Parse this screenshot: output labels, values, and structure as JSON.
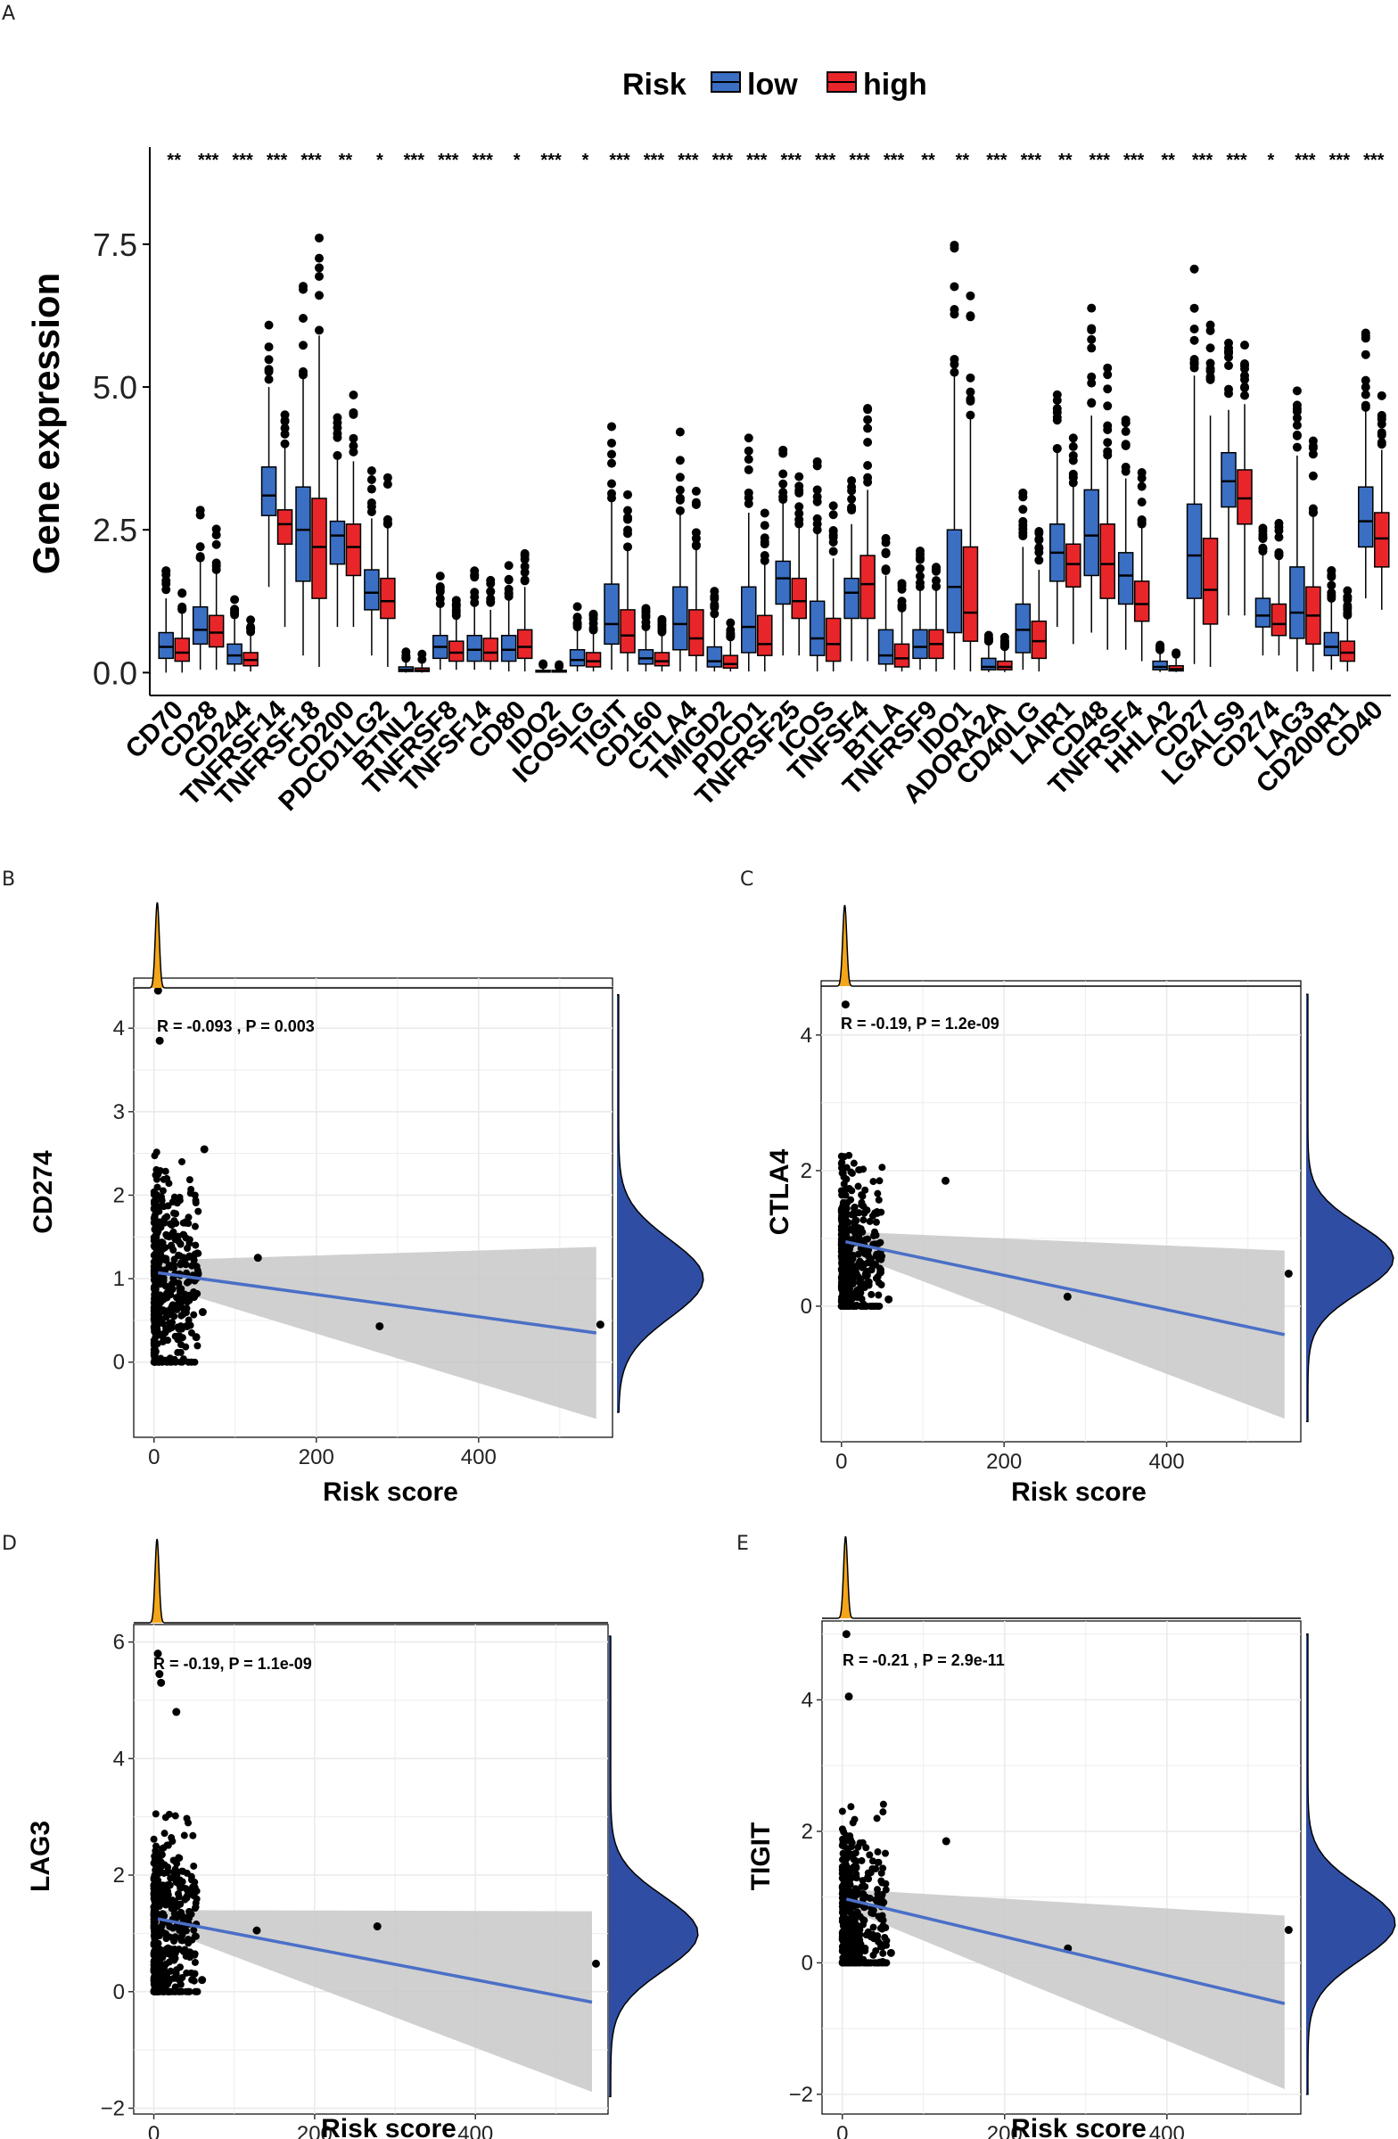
{
  "panels": {
    "A": "A",
    "B": "B",
    "C": "C",
    "D": "D",
    "E": "E"
  },
  "colors": {
    "low": "#3a6fc4",
    "high": "#e8262a",
    "density_top": "#f4a61a",
    "density_side": "#2f4ea3",
    "fit_line": "#4a6fc7",
    "band": "#c8c8c8",
    "grid": "#ebebeb"
  },
  "chart_data": [
    {
      "type": "box",
      "panel": "A",
      "ylabel": "Gene expression",
      "xlabel": "",
      "ylim": [
        -0.4,
        9.2
      ],
      "yticks": [
        0.0,
        2.5,
        5.0,
        7.5
      ],
      "ytick_labels": [
        "0.0",
        "2.5",
        "5.0",
        "7.5"
      ],
      "legend": {
        "title": "Risk",
        "entries": [
          "low",
          "high"
        ],
        "position": "top"
      },
      "categories": [
        "CD70",
        "CD28",
        "CD244",
        "TNFRSF14",
        "TNFRSF18",
        "CD200",
        "PDCD1LG2",
        "BTNL2",
        "TNFRSF8",
        "TNFSF14",
        "CD80",
        "IDO2",
        "ICOSLG",
        "TIGIT",
        "CD160",
        "CTLA4",
        "TMIGD2",
        "PDCD1",
        "TNFRSF25",
        "ICOS",
        "TNFSF4",
        "BTLA",
        "TNFRSF9",
        "IDO1",
        "ADORA2A",
        "CD40LG",
        "LAIR1",
        "CD48",
        "TNFRSF4",
        "HHLA2",
        "CD27",
        "LGALS9",
        "CD274",
        "LAG3",
        "CD200R1",
        "CD40"
      ],
      "significance": [
        "**",
        "***",
        "***",
        "***",
        "***",
        "**",
        "*",
        "***",
        "***",
        "***",
        "*",
        "***",
        "*",
        "***",
        "***",
        "***",
        "***",
        "***",
        "***",
        "***",
        "***",
        "***",
        "**",
        "**",
        "***",
        "***",
        "**",
        "***",
        "***",
        "**",
        "***",
        "***",
        "*",
        "***",
        "***",
        "***"
      ],
      "series": [
        {
          "name": "low",
          "stats": [
            [
              0,
              0.25,
              0.45,
              0.7,
              1.3
            ],
            [
              0.05,
              0.5,
              0.75,
              1.15,
              2.0
            ],
            [
              0.02,
              0.15,
              0.3,
              0.5,
              1.0
            ],
            [
              1.5,
              2.75,
              3.1,
              3.6,
              5.0
            ],
            [
              0.3,
              1.6,
              2.5,
              3.25,
              5.2
            ],
            [
              0.8,
              1.9,
              2.4,
              2.65,
              3.8
            ],
            [
              0.3,
              1.1,
              1.4,
              1.8,
              2.7
            ],
            [
              0,
              0.02,
              0.05,
              0.1,
              0.25
            ],
            [
              0.05,
              0.25,
              0.45,
              0.65,
              1.2
            ],
            [
              0.05,
              0.2,
              0.4,
              0.65,
              1.2
            ],
            [
              0.02,
              0.2,
              0.4,
              0.65,
              1.3
            ],
            [
              0,
              0.01,
              0.02,
              0.04,
              0.1
            ],
            [
              0.02,
              0.12,
              0.22,
              0.4,
              0.8
            ],
            [
              0.05,
              0.5,
              0.85,
              1.55,
              3.0
            ],
            [
              0.02,
              0.15,
              0.25,
              0.4,
              0.8
            ],
            [
              0.02,
              0.4,
              0.85,
              1.5,
              2.8
            ],
            [
              0.02,
              0.1,
              0.2,
              0.45,
              1.0
            ],
            [
              0.02,
              0.35,
              0.8,
              1.5,
              2.8
            ],
            [
              0.3,
              1.2,
              1.65,
              1.95,
              3.0
            ],
            [
              0.02,
              0.3,
              0.6,
              1.25,
              2.5
            ],
            [
              0.2,
              0.95,
              1.4,
              1.65,
              2.6
            ],
            [
              0.02,
              0.15,
              0.3,
              0.75,
              1.7
            ],
            [
              0.05,
              0.25,
              0.45,
              0.75,
              1.5
            ],
            [
              0.05,
              0.7,
              1.5,
              2.5,
              5.2
            ],
            [
              0.01,
              0.05,
              0.1,
              0.25,
              0.55
            ],
            [
              0.05,
              0.35,
              0.75,
              1.2,
              2.2
            ],
            [
              0.8,
              1.6,
              2.1,
              2.6,
              3.9
            ],
            [
              0.7,
              1.7,
              2.4,
              3.2,
              4.5
            ],
            [
              0.4,
              1.2,
              1.7,
              2.1,
              3.4
            ],
            [
              0.01,
              0.05,
              0.1,
              0.2,
              0.4
            ],
            [
              0.15,
              1.3,
              2.05,
              2.95,
              5.2
            ],
            [
              1.0,
              2.9,
              3.35,
              3.85,
              4.6
            ],
            [
              0.3,
              0.8,
              1.0,
              1.3,
              2.1
            ],
            [
              0.02,
              0.6,
              1.05,
              1.85,
              3.8
            ],
            [
              0.05,
              0.3,
              0.45,
              0.7,
              1.3
            ],
            [
              1.3,
              2.2,
              2.65,
              3.25,
              4.6
            ]
          ]
        },
        {
          "name": "high",
          "stats": [
            [
              0,
              0.2,
              0.35,
              0.6,
              1.1
            ],
            [
              0.05,
              0.45,
              0.7,
              1.0,
              1.8
            ],
            [
              0.02,
              0.12,
              0.22,
              0.35,
              0.7
            ],
            [
              0.8,
              2.25,
              2.6,
              2.85,
              4.0
            ],
            [
              0.1,
              1.3,
              2.2,
              3.05,
              5.9
            ],
            [
              0.8,
              1.7,
              2.2,
              2.6,
              3.7
            ],
            [
              0.1,
              0.95,
              1.25,
              1.65,
              2.6
            ],
            [
              0,
              0.02,
              0.04,
              0.08,
              0.2
            ],
            [
              0.05,
              0.2,
              0.35,
              0.55,
              1.0
            ],
            [
              0.05,
              0.2,
              0.35,
              0.6,
              1.1
            ],
            [
              0.02,
              0.25,
              0.45,
              0.75,
              1.5
            ],
            [
              0,
              0.01,
              0.02,
              0.04,
              0.1
            ],
            [
              0.02,
              0.1,
              0.2,
              0.35,
              0.7
            ],
            [
              0.02,
              0.35,
              0.65,
              1.1,
              2.2
            ],
            [
              0.02,
              0.12,
              0.2,
              0.35,
              0.7
            ],
            [
              0.02,
              0.3,
              0.6,
              1.1,
              2.2
            ],
            [
              0.02,
              0.08,
              0.15,
              0.3,
              0.6
            ],
            [
              0.02,
              0.3,
              0.5,
              1.0,
              1.9
            ],
            [
              0.3,
              0.95,
              1.25,
              1.65,
              2.6
            ],
            [
              0.02,
              0.2,
              0.5,
              0.95,
              2.0
            ],
            [
              0.2,
              0.95,
              1.55,
              2.05,
              3.2
            ],
            [
              0.02,
              0.1,
              0.25,
              0.5,
              1.1
            ],
            [
              0.02,
              0.25,
              0.5,
              0.75,
              1.5
            ],
            [
              0.02,
              0.55,
              1.05,
              2.2,
              4.5
            ],
            [
              0.01,
              0.05,
              0.1,
              0.2,
              0.45
            ],
            [
              0.02,
              0.25,
              0.55,
              0.9,
              1.8
            ],
            [
              0.5,
              1.5,
              1.9,
              2.25,
              3.3
            ],
            [
              0.4,
              1.3,
              1.9,
              2.6,
              3.8
            ],
            [
              0.2,
              0.9,
              1.2,
              1.6,
              2.6
            ],
            [
              0.01,
              0.03,
              0.06,
              0.12,
              0.25
            ],
            [
              0.1,
              0.85,
              1.45,
              2.35,
              4.5
            ],
            [
              1.0,
              2.6,
              3.05,
              3.55,
              4.7
            ],
            [
              0.3,
              0.65,
              0.85,
              1.2,
              2.0
            ],
            [
              0.02,
              0.5,
              1.0,
              1.5,
              2.8
            ],
            [
              0.02,
              0.2,
              0.35,
              0.55,
              1.0
            ],
            [
              1.1,
              1.85,
              2.35,
              2.8,
              3.9
            ]
          ]
        }
      ]
    },
    {
      "type": "scatter",
      "panel": "B",
      "title": "R = -0.093 , P = 0.003",
      "xlabel": "Risk score",
      "ylabel": "CD274",
      "xlim": [
        -25,
        565
      ],
      "ylim": [
        -0.9,
        4.6
      ],
      "xticks": [
        0,
        200,
        400
      ],
      "xtick_labels": [
        "0",
        "200",
        "400"
      ],
      "yticks": [
        0,
        1,
        2,
        3,
        4
      ],
      "ytick_labels": [
        "0",
        "1",
        "2",
        "3",
        "4"
      ],
      "fit": {
        "x": [
          5,
          545
        ],
        "y": [
          1.07,
          0.35
        ]
      },
      "band": {
        "x": [
          5,
          545
        ],
        "upper": [
          1.22,
          1.38
        ],
        "lower": [
          0.92,
          -0.68
        ]
      },
      "cluster": {
        "x_max": 55,
        "y_min": 0,
        "y_max": 3.3,
        "y_center": 1.0
      },
      "points": [
        [
          5,
          4.45
        ],
        [
          7,
          3.85
        ],
        [
          128,
          1.25
        ],
        [
          278,
          0.43
        ],
        [
          550,
          0.45
        ],
        [
          62,
          2.55
        ],
        [
          60,
          0.6
        ],
        [
          52,
          0.3
        ]
      ]
    },
    {
      "type": "scatter",
      "panel": "C",
      "title": "R = -0.19, P = 1.2e-09",
      "xlabel": "Risk score",
      "ylabel": "CTLA4",
      "xlim": [
        -25,
        565
      ],
      "ylim": [
        -2.0,
        4.8
      ],
      "xticks": [
        0,
        200,
        400
      ],
      "xtick_labels": [
        "0",
        "200",
        "400"
      ],
      "yticks": [
        0,
        2,
        4
      ],
      "ytick_labels": [
        "0",
        "2",
        "4"
      ],
      "fit": {
        "x": [
          5,
          545
        ],
        "y": [
          0.95,
          -0.42
        ]
      },
      "band": {
        "x": [
          5,
          545
        ],
        "upper": [
          1.1,
          0.82
        ],
        "lower": [
          0.8,
          -1.66
        ]
      },
      "cluster": {
        "x_max": 50,
        "y_min": 0,
        "y_max": 3.5,
        "y_center": 0.7
      },
      "points": [
        [
          5,
          4.45
        ],
        [
          128,
          1.85
        ],
        [
          278,
          0.14
        ],
        [
          550,
          0.48
        ],
        [
          58,
          0.1
        ],
        [
          48,
          0.5
        ]
      ]
    },
    {
      "type": "scatter",
      "panel": "D",
      "title": "R = -0.19, P = 1.1e-09",
      "xlabel": "Risk score",
      "ylabel": "LAG3",
      "xlim": [
        -25,
        565
      ],
      "ylim": [
        -2.1,
        6.3
      ],
      "xticks": [
        0,
        200,
        400
      ],
      "xtick_labels": [
        "0",
        "200",
        "400"
      ],
      "yticks": [
        -2,
        0,
        2,
        4,
        6
      ],
      "ytick_labels": [
        "−2",
        "0",
        "2",
        "4",
        "6"
      ],
      "fit": {
        "x": [
          5,
          545
        ],
        "y": [
          1.25,
          -0.18
        ]
      },
      "band": {
        "x": [
          5,
          545
        ],
        "upper": [
          1.4,
          1.38
        ],
        "lower": [
          1.1,
          -1.72
        ]
      },
      "cluster": {
        "x_max": 55,
        "y_min": 0,
        "y_max": 4.5,
        "y_center": 1.0
      },
      "points": [
        [
          5,
          5.8
        ],
        [
          7,
          5.45
        ],
        [
          9,
          5.3
        ],
        [
          128,
          1.05
        ],
        [
          278,
          1.12
        ],
        [
          550,
          0.48
        ],
        [
          60,
          0.2
        ],
        [
          28,
          4.8
        ]
      ]
    },
    {
      "type": "scatter",
      "panel": "E",
      "title": "R = -0.21 , P = 2.9e-11",
      "xlabel": "Risk score",
      "ylabel": "TIGIT",
      "xlim": [
        -25,
        565
      ],
      "ylim": [
        -2.3,
        5.2
      ],
      "xticks": [
        0,
        200,
        400
      ],
      "xtick_labels": [
        "0",
        "200",
        "400"
      ],
      "yticks": [
        -2,
        0,
        2,
        4
      ],
      "ytick_labels": [
        "−2",
        "0",
        "2",
        "4"
      ],
      "fit": {
        "x": [
          5,
          545
        ],
        "y": [
          0.97,
          -0.62
        ]
      },
      "band": {
        "x": [
          5,
          545
        ],
        "upper": [
          1.12,
          0.72
        ],
        "lower": [
          0.82,
          -1.92
        ]
      },
      "cluster": {
        "x_max": 55,
        "y_min": 0,
        "y_max": 3.9,
        "y_center": 0.6
      },
      "points": [
        [
          5,
          5.0
        ],
        [
          8,
          4.05
        ],
        [
          128,
          1.85
        ],
        [
          278,
          0.22
        ],
        [
          550,
          0.5
        ],
        [
          60,
          0.15
        ],
        [
          45,
          0.9
        ]
      ]
    }
  ]
}
